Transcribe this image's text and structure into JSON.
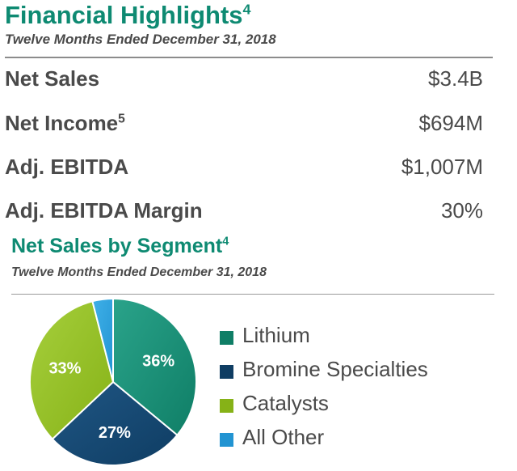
{
  "highlights": {
    "title": "Financial Highlights",
    "title_note": "4",
    "subtitle": "Twelve Months Ended December 31, 2018",
    "rows": [
      {
        "label": "Net Sales",
        "note": "",
        "value": "$3.4B"
      },
      {
        "label": "Net Income",
        "note": "5",
        "value": "$694M"
      },
      {
        "label": "Adj. EBITDA",
        "note": "",
        "value": "$1,007M"
      },
      {
        "label": "Adj. EBITDA Margin",
        "note": "",
        "value": "30%"
      }
    ]
  },
  "chart_data": {
    "type": "pie",
    "title": "Net Sales by Segment",
    "title_note": "4",
    "subtitle": "Twelve Months Ended December 31, 2018",
    "slices": [
      {
        "name": "Lithium",
        "value": 36,
        "label": "36%",
        "color": "#0f7e66",
        "color_light": "#2aa38a"
      },
      {
        "name": "Bromine Specialties",
        "value": 27,
        "label": "27%",
        "color": "#0f3d63",
        "color_light": "#1f5684"
      },
      {
        "name": "Catalysts",
        "value": 33,
        "label": "33%",
        "color": "#86b217",
        "color_light": "#a6cf3c"
      },
      {
        "name": "All Other",
        "value": 4,
        "label": "",
        "color": "#2294d2",
        "color_light": "#3fb0e8"
      }
    ],
    "legend_position": "right"
  },
  "colors": {
    "accent": "#0e8a72",
    "text": "#4a4a4a"
  }
}
